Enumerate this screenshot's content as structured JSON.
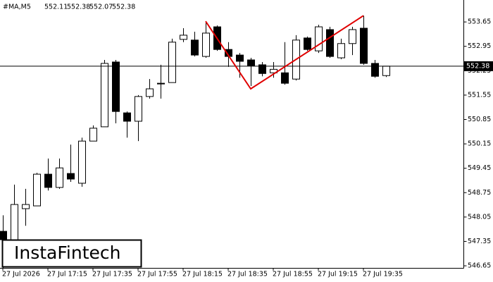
{
  "chart_data": {
    "type": "candlestick",
    "symbol": "#MA,M5",
    "header_ohlc": [
      552.11,
      552.38,
      552.07,
      552.38
    ],
    "brand": "InstaFintech",
    "categories": [
      "27 Jul 2026",
      null,
      null,
      null,
      "27 Jul 17:15",
      null,
      null,
      null,
      "27 Jul 17:35",
      null,
      null,
      null,
      "27 Jul 17:55",
      null,
      null,
      null,
      "27 Jul 18:15",
      null,
      null,
      null,
      "27 Jul 18:35",
      null,
      null,
      null,
      "27 Jul 18:55",
      null,
      null,
      null,
      "27 Jul 19:15",
      null,
      null,
      null,
      "27 Jul 19:35",
      null,
      null
    ],
    "open": [
      547.64,
      546.79,
      548.29,
      548.37,
      549.28,
      548.9,
      549.3,
      549.02,
      550.23,
      550.64,
      552.5,
      551.04,
      550.8,
      551.51,
      551.87,
      551.91,
      553.15,
      553.13,
      552.66,
      553.51,
      552.86,
      552.7,
      552.56,
      552.42,
      552.19,
      552.19,
      552.01,
      553.19,
      552.82,
      553.43,
      552.62,
      553.03,
      553.47,
      552.46,
      552.11
    ],
    "high": [
      548.1,
      548.98,
      548.86,
      549.32,
      549.73,
      549.73,
      550.13,
      550.33,
      550.68,
      552.56,
      552.56,
      551.08,
      551.55,
      552.01,
      552.42,
      553.17,
      553.47,
      553.37,
      553.63,
      553.55,
      553.07,
      552.76,
      552.62,
      552.5,
      552.5,
      553.07,
      553.27,
      553.23,
      553.57,
      553.51,
      553.17,
      553.51,
      553.83,
      552.56,
      552.38
    ],
    "low": [
      546.59,
      546.69,
      547.8,
      548.37,
      548.81,
      548.86,
      549.06,
      548.92,
      550.23,
      550.64,
      550.74,
      550.33,
      550.23,
      551.45,
      551.45,
      551.91,
      553.07,
      552.66,
      552.62,
      552.82,
      552.36,
      552.05,
      551.81,
      552.09,
      552.05,
      551.85,
      551.97,
      552.82,
      552.76,
      552.62,
      552.58,
      552.7,
      552.42,
      552.05,
      552.07
    ],
    "close": [
      547.4,
      548.41,
      548.41,
      549.28,
      548.9,
      549.46,
      549.14,
      550.23,
      550.6,
      552.46,
      551.08,
      550.8,
      551.51,
      551.73,
      551.89,
      553.07,
      553.27,
      552.7,
      553.33,
      552.86,
      552.66,
      552.52,
      552.4,
      552.17,
      552.29,
      551.89,
      553.13,
      552.86,
      553.51,
      552.66,
      553.03,
      553.43,
      552.46,
      552.09,
      552.38
    ],
    "bull_color": "#ffffff",
    "bear_color": "#000000",
    "last_price": 552.38,
    "pattern": {
      "color": "#e00000",
      "x": [
        18,
        22,
        32
      ],
      "values": [
        553.67,
        551.73,
        553.83
      ]
    },
    "ylim": [
      546.59,
      554.28
    ],
    "yticks": [
      553.65,
      552.95,
      552.25,
      551.55,
      550.85,
      550.15,
      549.45,
      548.75,
      548.05,
      547.35,
      546.65
    ]
  }
}
